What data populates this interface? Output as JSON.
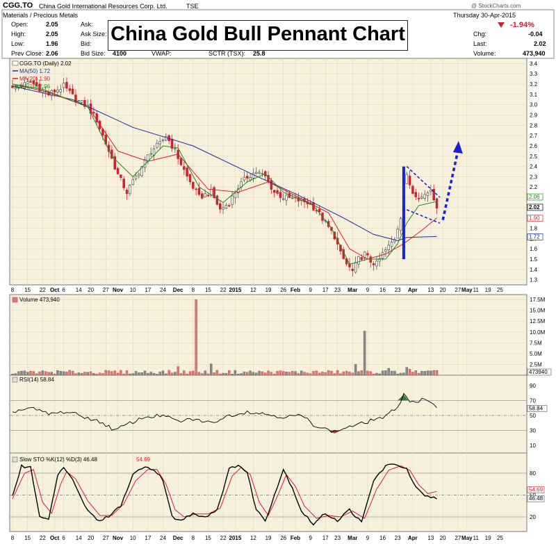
{
  "header": {
    "symbol": "CGG.TO",
    "company": "China Gold International Resources Corp. Ltd.",
    "exchange": "TSE",
    "category": "Materials / Precious Metals",
    "date": "Thursday 30-Apr-2015",
    "pct_change": "-1.94%",
    "watermark": "@ StockCharts.com",
    "fields_left": [
      {
        "label": "Open:",
        "value": "2.05"
      },
      {
        "label": "High:",
        "value": "2.05"
      },
      {
        "label": "Low:",
        "value": "1.96"
      },
      {
        "label": "Prev Close:",
        "value": "2.06"
      }
    ],
    "fields_mid": [
      {
        "label": "Ask:",
        "value": ""
      },
      {
        "label": "Ask Size:",
        "value": ""
      },
      {
        "label": "Bid:",
        "value": ""
      },
      {
        "label": "Bid Size:",
        "value": "4100"
      }
    ],
    "vwap_label": "VWAP:",
    "sctr_label": "SCTR (TSX):",
    "sctr_value": "25.8",
    "fields_right": [
      {
        "label": "Chg:",
        "value": "-0.04"
      },
      {
        "label": "Last:",
        "value": "2.02"
      },
      {
        "label": "Volume:",
        "value": "473,940"
      }
    ]
  },
  "overlay_title": "China Gold Bull Pennant Chart",
  "colors": {
    "panel_bg": "#f7f0dd",
    "up_candle": "#555555",
    "down_candle": "#cc2233",
    "ma50": "#1c2a9c",
    "ma20": "#d6202e",
    "ma10": "#1d8a1d",
    "pattern": "#1a22d6"
  },
  "chart_data": [
    {
      "type": "candlestick",
      "title": "CGG.TO (Daily) 2.02",
      "legend": [
        {
          "name": "MA(50) 1.72",
          "color": "#1c2a9c"
        },
        {
          "name": "MA(20) 1.90",
          "color": "#d6202e"
        },
        {
          "name": "MA(10) 2.06",
          "color": "#1d8a1d"
        }
      ],
      "legend_placement": "top-left",
      "ylim": [
        1.25,
        3.45
      ],
      "y_ticks": [
        "3.4",
        "3.3",
        "3.2",
        "3.1",
        "3.0",
        "2.9",
        "2.8",
        "2.7",
        "2.6",
        "2.5",
        "2.4",
        "2.3",
        "2.2",
        "2.1",
        "2.0",
        "1.9",
        "1.8",
        "1.7",
        "1.6",
        "1.5",
        "1.4",
        "1.3"
      ],
      "last_labels": [
        "2.06",
        "2.02",
        "1.90",
        "1.72"
      ],
      "close_path": [
        [
          0,
          3.15
        ],
        [
          6,
          3.22
        ],
        [
          12,
          3.1
        ],
        [
          17,
          3.18
        ],
        [
          21,
          3.05
        ],
        [
          25,
          2.98
        ],
        [
          28,
          2.85
        ],
        [
          32,
          2.55
        ],
        [
          35,
          2.32
        ],
        [
          38,
          2.15
        ],
        [
          42,
          2.35
        ],
        [
          46,
          2.55
        ],
        [
          49,
          2.62
        ],
        [
          51,
          2.7
        ],
        [
          54,
          2.55
        ],
        [
          58,
          2.3
        ],
        [
          62,
          2.1
        ],
        [
          66,
          2.15
        ],
        [
          69,
          1.98
        ],
        [
          72,
          2.05
        ],
        [
          75,
          2.2
        ],
        [
          78,
          2.3
        ],
        [
          81,
          2.35
        ],
        [
          84,
          2.3
        ],
        [
          87,
          2.15
        ],
        [
          90,
          2.1
        ],
        [
          94,
          2.08
        ],
        [
          98,
          2.05
        ],
        [
          101,
          1.98
        ],
        [
          104,
          1.85
        ],
        [
          107,
          1.72
        ],
        [
          109,
          1.55
        ],
        [
          111,
          1.45
        ],
        [
          113,
          1.38
        ],
        [
          115,
          1.5
        ],
        [
          117,
          1.55
        ],
        [
          119,
          1.48
        ],
        [
          121,
          1.45
        ],
        [
          123,
          1.55
        ],
        [
          125,
          1.62
        ],
        [
          127,
          1.7
        ],
        [
          129,
          1.92
        ],
        [
          130,
          2.22
        ],
        [
          131,
          2.3
        ],
        [
          133,
          2.15
        ],
        [
          136,
          2.1
        ],
        [
          139,
          2.18
        ],
        [
          141,
          2.02
        ]
      ],
      "ma50_path": [
        [
          0,
          3.18
        ],
        [
          20,
          3.05
        ],
        [
          40,
          2.78
        ],
        [
          60,
          2.6
        ],
        [
          80,
          2.32
        ],
        [
          95,
          2.12
        ],
        [
          110,
          1.9
        ],
        [
          120,
          1.74
        ],
        [
          128,
          1.68
        ],
        [
          131,
          1.71
        ],
        [
          141,
          1.72
        ]
      ],
      "ma20_path": [
        [
          0,
          3.2
        ],
        [
          12,
          3.12
        ],
        [
          25,
          2.98
        ],
        [
          35,
          2.55
        ],
        [
          45,
          2.45
        ],
        [
          55,
          2.52
        ],
        [
          65,
          2.18
        ],
        [
          75,
          2.15
        ],
        [
          85,
          2.25
        ],
        [
          95,
          2.1
        ],
        [
          105,
          1.95
        ],
        [
          112,
          1.6
        ],
        [
          118,
          1.5
        ],
        [
          124,
          1.55
        ],
        [
          130,
          1.65
        ],
        [
          136,
          1.78
        ],
        [
          141,
          1.9
        ]
      ],
      "ma10_path": [
        [
          0,
          3.2
        ],
        [
          10,
          3.15
        ],
        [
          25,
          2.98
        ],
        [
          33,
          2.5
        ],
        [
          40,
          2.3
        ],
        [
          50,
          2.6
        ],
        [
          55,
          2.58
        ],
        [
          62,
          2.2
        ],
        [
          70,
          2.05
        ],
        [
          78,
          2.25
        ],
        [
          84,
          2.33
        ],
        [
          90,
          2.15
        ],
        [
          100,
          2.02
        ],
        [
          106,
          1.8
        ],
        [
          112,
          1.45
        ],
        [
          118,
          1.5
        ],
        [
          124,
          1.5
        ],
        [
          128,
          1.65
        ],
        [
          131,
          1.85
        ],
        [
          135,
          2.02
        ],
        [
          141,
          2.06
        ]
      ],
      "pattern": {
        "pole": [
          [
            130,
            1.5
          ],
          [
            130,
            2.4
          ]
        ],
        "flag_upper": [
          [
            131,
            2.4
          ],
          [
            142,
            2.1
          ]
        ],
        "flag_lower": [
          [
            131,
            1.98
          ],
          [
            142,
            1.85
          ]
        ],
        "projection": [
          [
            143,
            1.88
          ],
          [
            148,
            2.62
          ]
        ]
      }
    },
    {
      "type": "bar",
      "title": "Volume 473,940",
      "ylim": [
        0,
        18
      ],
      "y_ticks": [
        "17.5M",
        "15.0M",
        "12.5M",
        "10.0M",
        "7.5M",
        "5.0M",
        "2.5M"
      ],
      "last_label": "473940",
      "spikes": [
        [
          61,
          17.5
        ],
        [
          117,
          10.2
        ],
        [
          66,
          2.6
        ],
        [
          55,
          2.0
        ],
        [
          114,
          2.5
        ],
        [
          125,
          1.6
        ],
        [
          131,
          1.8
        ],
        [
          132,
          1.4
        ]
      ]
    },
    {
      "type": "line",
      "title": "RSI(14) 58.84",
      "ylim": [
        0,
        100
      ],
      "y_ticks": [
        "90",
        "70",
        "50",
        "30",
        "10"
      ],
      "last_label": "58.84",
      "path": [
        [
          0,
          55
        ],
        [
          6,
          60
        ],
        [
          12,
          52
        ],
        [
          18,
          55
        ],
        [
          24,
          48
        ],
        [
          30,
          40
        ],
        [
          34,
          30
        ],
        [
          38,
          38
        ],
        [
          44,
          48
        ],
        [
          50,
          50
        ],
        [
          55,
          42
        ],
        [
          60,
          45
        ],
        [
          66,
          40
        ],
        [
          72,
          50
        ],
        [
          78,
          55
        ],
        [
          84,
          52
        ],
        [
          90,
          48
        ],
        [
          96,
          50
        ],
        [
          100,
          38
        ],
        [
          104,
          32
        ],
        [
          107,
          28
        ],
        [
          110,
          33
        ],
        [
          114,
          37
        ],
        [
          117,
          40
        ],
        [
          120,
          45
        ],
        [
          124,
          48
        ],
        [
          128,
          62
        ],
        [
          130,
          78
        ],
        [
          132,
          70
        ],
        [
          134,
          68
        ],
        [
          137,
          72
        ],
        [
          141,
          59
        ]
      ]
    },
    {
      "type": "line",
      "title": "Slow STO %K(12) %D(3) 46.48, 54.69",
      "ylim": [
        0,
        100
      ],
      "y_ticks": [
        "80",
        "50",
        "20"
      ],
      "last_labels": [
        "54.69",
        "46.48"
      ],
      "k_path": [
        [
          0,
          50
        ],
        [
          3,
          90
        ],
        [
          6,
          88
        ],
        [
          9,
          22
        ],
        [
          12,
          15
        ],
        [
          15,
          78
        ],
        [
          17,
          88
        ],
        [
          20,
          70
        ],
        [
          24,
          35
        ],
        [
          28,
          15
        ],
        [
          32,
          20
        ],
        [
          36,
          35
        ],
        [
          40,
          78
        ],
        [
          44,
          88
        ],
        [
          47,
          86
        ],
        [
          50,
          70
        ],
        [
          53,
          20
        ],
        [
          56,
          15
        ],
        [
          60,
          25
        ],
        [
          64,
          20
        ],
        [
          68,
          30
        ],
        [
          72,
          85
        ],
        [
          75,
          92
        ],
        [
          78,
          80
        ],
        [
          81,
          30
        ],
        [
          84,
          15
        ],
        [
          87,
          50
        ],
        [
          90,
          85
        ],
        [
          93,
          60
        ],
        [
          96,
          28
        ],
        [
          100,
          10
        ],
        [
          104,
          25
        ],
        [
          108,
          15
        ],
        [
          112,
          30
        ],
        [
          116,
          12
        ],
        [
          120,
          70
        ],
        [
          124,
          90
        ],
        [
          128,
          92
        ],
        [
          131,
          85
        ],
        [
          134,
          60
        ],
        [
          137,
          48
        ],
        [
          141,
          46
        ]
      ],
      "d_path": [
        [
          0,
          45
        ],
        [
          4,
          80
        ],
        [
          7,
          85
        ],
        [
          10,
          40
        ],
        [
          13,
          25
        ],
        [
          16,
          65
        ],
        [
          18,
          82
        ],
        [
          21,
          72
        ],
        [
          25,
          42
        ],
        [
          29,
          22
        ],
        [
          33,
          22
        ],
        [
          37,
          38
        ],
        [
          41,
          70
        ],
        [
          45,
          85
        ],
        [
          48,
          85
        ],
        [
          51,
          65
        ],
        [
          54,
          30
        ],
        [
          57,
          20
        ],
        [
          61,
          24
        ],
        [
          65,
          24
        ],
        [
          69,
          32
        ],
        [
          73,
          76
        ],
        [
          76,
          88
        ],
        [
          79,
          78
        ],
        [
          82,
          40
        ],
        [
          85,
          22
        ],
        [
          88,
          48
        ],
        [
          91,
          78
        ],
        [
          94,
          62
        ],
        [
          97,
          35
        ],
        [
          101,
          18
        ],
        [
          105,
          22
        ],
        [
          109,
          20
        ],
        [
          113,
          28
        ],
        [
          117,
          18
        ],
        [
          121,
          58
        ],
        [
          125,
          84
        ],
        [
          129,
          90
        ],
        [
          132,
          84
        ],
        [
          135,
          64
        ],
        [
          138,
          52
        ],
        [
          141,
          55
        ]
      ]
    }
  ],
  "x_axis": {
    "n_slots": 152,
    "labels": [
      {
        "t": "8",
        "i": 0
      },
      {
        "t": "15",
        "i": 5
      },
      {
        "t": "22",
        "i": 10
      },
      {
        "t": "Oct",
        "i": 14,
        "bold": true
      },
      {
        "t": "6",
        "i": 17
      },
      {
        "t": "14",
        "i": 22
      },
      {
        "t": "20",
        "i": 26
      },
      {
        "t": "27",
        "i": 31
      },
      {
        "t": "Nov",
        "i": 35,
        "bold": true
      },
      {
        "t": "10",
        "i": 40
      },
      {
        "t": "17",
        "i": 45
      },
      {
        "t": "24",
        "i": 50
      },
      {
        "t": "Dec",
        "i": 55,
        "bold": true
      },
      {
        "t": "8",
        "i": 60
      },
      {
        "t": "15",
        "i": 65
      },
      {
        "t": "22",
        "i": 70
      },
      {
        "t": "2015",
        "i": 74,
        "bold": true
      },
      {
        "t": "12",
        "i": 80
      },
      {
        "t": "19",
        "i": 85
      },
      {
        "t": "26",
        "i": 90
      },
      {
        "t": "Feb",
        "i": 94,
        "bold": true
      },
      {
        "t": "9",
        "i": 99
      },
      {
        "t": "17",
        "i": 104
      },
      {
        "t": "23",
        "i": 108
      },
      {
        "t": "Mar",
        "i": 113,
        "bold": true
      },
      {
        "t": "9",
        "i": 118
      },
      {
        "t": "16",
        "i": 123
      },
      {
        "t": "23",
        "i": 128
      },
      {
        "t": "Apr",
        "i": 133,
        "bold": true
      },
      {
        "t": "13",
        "i": 139
      },
      {
        "t": "20",
        "i": 143
      },
      {
        "t": "27",
        "i": 148
      },
      {
        "t": "May",
        "i": 151,
        "bold": true
      }
    ],
    "future_labels": [
      "11",
      "19",
      "25"
    ]
  }
}
